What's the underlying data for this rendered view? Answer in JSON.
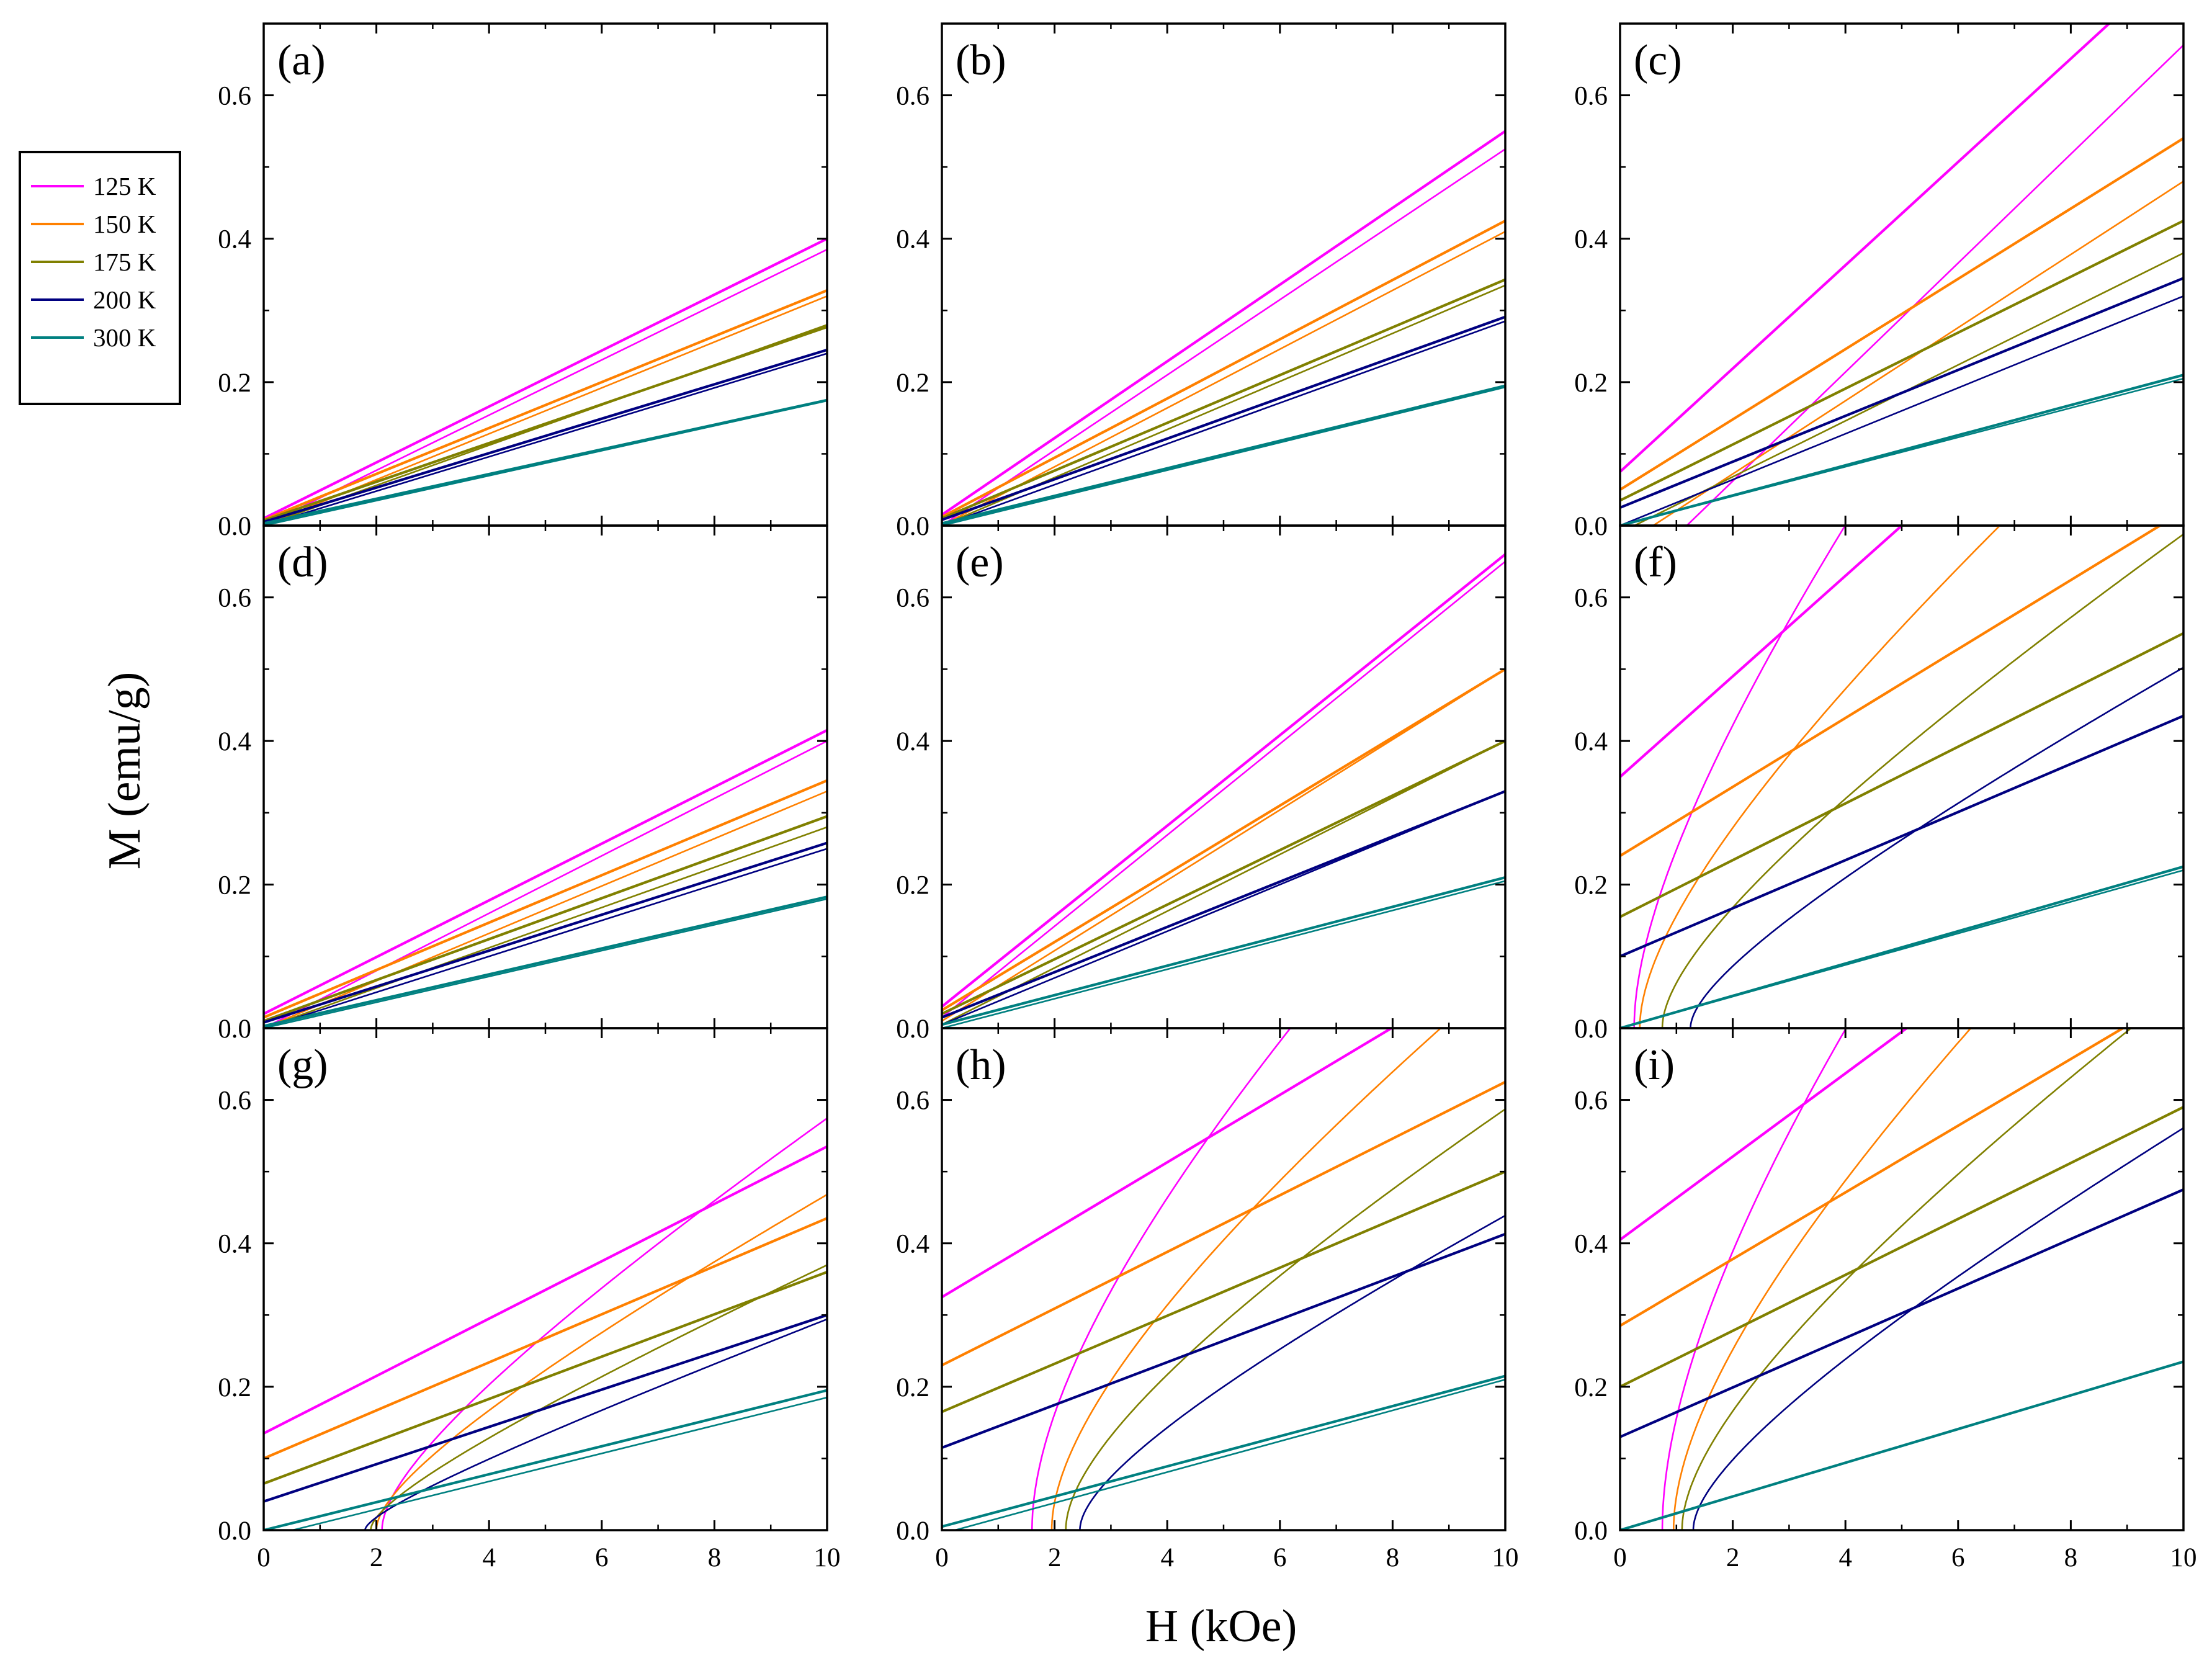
{
  "chart_data": {
    "type": "line",
    "xlabel": "H (kOe)",
    "ylabel": "M (emu/g)",
    "xlim": [
      0,
      10
    ],
    "ylim": [
      0,
      0.7
    ],
    "x_ticks": [
      0,
      2,
      4,
      6,
      8,
      10
    ],
    "x_tick_labels": [
      "0",
      "2",
      "4",
      "6",
      "8",
      "10"
    ],
    "y_ticks": [
      0.0,
      0.2,
      0.4,
      0.6
    ],
    "y_tick_labels": [
      "0.0",
      "0.2",
      "0.4",
      "0.6"
    ],
    "legend": [
      {
        "label": "125 K",
        "color": "#ff00ff"
      },
      {
        "label": "150 K",
        "color": "#ff8000"
      },
      {
        "label": "175 K",
        "color": "#808000"
      },
      {
        "label": "200 K",
        "color": "#000080"
      },
      {
        "label": "300 K",
        "color": "#008080"
      }
    ],
    "panels": [
      {
        "label": "(a)",
        "series": [
          {
            "name": "125 K",
            "upper": {
              "m0": 0.01,
              "slope": 0.039
            },
            "lower": {
              "type": "linear",
              "m0": 0.0,
              "slope": 0.0385
            }
          },
          {
            "name": "150 K",
            "upper": {
              "m0": 0.008,
              "slope": 0.032
            },
            "lower": {
              "type": "linear",
              "m0": 0.0,
              "slope": 0.032
            }
          },
          {
            "name": "175 K",
            "upper": {
              "m0": 0.007,
              "slope": 0.027
            },
            "lower": {
              "type": "linear",
              "m0": 0.0,
              "slope": 0.028
            }
          },
          {
            "name": "200 K",
            "upper": {
              "m0": 0.005,
              "slope": 0.024
            },
            "lower": {
              "type": "linear",
              "m0": 0.0,
              "slope": 0.024
            }
          },
          {
            "name": "300 K",
            "upper": {
              "m0": 0.003,
              "slope": 0.0172
            },
            "lower": {
              "type": "linear",
              "m0": 0.0,
              "slope": 0.0174
            }
          }
        ]
      },
      {
        "label": "(b)",
        "series": [
          {
            "name": "125 K",
            "upper": {
              "m0": 0.015,
              "slope": 0.0535
            },
            "lower": {
              "type": "linear",
              "m0": 0.0,
              "slope": 0.0525
            }
          },
          {
            "name": "150 K",
            "upper": {
              "m0": 0.012,
              "slope": 0.0413
            },
            "lower": {
              "type": "linear",
              "m0": 0.0,
              "slope": 0.041
            }
          },
          {
            "name": "175 K",
            "upper": {
              "m0": 0.01,
              "slope": 0.0333
            },
            "lower": {
              "type": "linear",
              "m0": 0.0,
              "slope": 0.0335
            }
          },
          {
            "name": "200 K",
            "upper": {
              "m0": 0.008,
              "slope": 0.0283
            },
            "lower": {
              "type": "linear",
              "m0": 0.0,
              "slope": 0.0285
            }
          },
          {
            "name": "300 K",
            "upper": {
              "m0": 0.003,
              "slope": 0.0192
            },
            "lower": {
              "type": "linear",
              "m0": 0.0,
              "slope": 0.0193
            }
          }
        ]
      },
      {
        "label": "(c)",
        "series": [
          {
            "name": "125 K",
            "upper": {
              "m0": 0.075,
              "slope": 0.072
            },
            "lower": {
              "type": "linear",
              "m0": -0.09,
              "slope": 0.076
            }
          },
          {
            "name": "150 K",
            "upper": {
              "m0": 0.05,
              "slope": 0.049
            },
            "lower": {
              "type": "linear",
              "m0": -0.03,
              "slope": 0.051
            }
          },
          {
            "name": "175 K",
            "upper": {
              "m0": 0.035,
              "slope": 0.039
            },
            "lower": {
              "type": "linear",
              "m0": -0.01,
              "slope": 0.039
            }
          },
          {
            "name": "200 K",
            "upper": {
              "m0": 0.025,
              "slope": 0.032
            },
            "lower": {
              "type": "linear",
              "m0": 0.0,
              "slope": 0.032
            }
          },
          {
            "name": "300 K",
            "upper": {
              "m0": 0.0,
              "slope": 0.021
            },
            "lower": {
              "type": "linear",
              "m0": 0.0,
              "slope": 0.0205
            }
          }
        ]
      },
      {
        "label": "(d)",
        "series": [
          {
            "name": "125 K",
            "upper": {
              "m0": 0.02,
              "slope": 0.0395
            },
            "lower": {
              "type": "linear",
              "m0": 0.0,
              "slope": 0.04
            }
          },
          {
            "name": "150 K",
            "upper": {
              "m0": 0.015,
              "slope": 0.033
            },
            "lower": {
              "type": "linear",
              "m0": 0.0,
              "slope": 0.033
            }
          },
          {
            "name": "175 K",
            "upper": {
              "m0": 0.01,
              "slope": 0.0285
            },
            "lower": {
              "type": "linear",
              "m0": 0.0,
              "slope": 0.028
            }
          },
          {
            "name": "200 K",
            "upper": {
              "m0": 0.008,
              "slope": 0.025
            },
            "lower": {
              "type": "linear",
              "m0": 0.0,
              "slope": 0.025
            }
          },
          {
            "name": "300 K",
            "upper": {
              "m0": 0.003,
              "slope": 0.018
            },
            "lower": {
              "type": "linear",
              "m0": 0.0,
              "slope": 0.018
            }
          }
        ]
      },
      {
        "label": "(e)",
        "series": [
          {
            "name": "125 K",
            "upper": {
              "m0": 0.03,
              "slope": 0.063
            },
            "lower": {
              "type": "linear",
              "m0": 0.015,
              "slope": 0.0635
            }
          },
          {
            "name": "150 K",
            "upper": {
              "m0": 0.025,
              "slope": 0.0475
            },
            "lower": {
              "type": "linear",
              "m0": 0.01,
              "slope": 0.049
            }
          },
          {
            "name": "175 K",
            "upper": {
              "m0": 0.02,
              "slope": 0.038
            },
            "lower": {
              "type": "linear",
              "m0": 0.005,
              "slope": 0.0395
            }
          },
          {
            "name": "200 K",
            "upper": {
              "m0": 0.015,
              "slope": 0.0315
            },
            "lower": {
              "type": "linear",
              "m0": 0.005,
              "slope": 0.0325
            }
          },
          {
            "name": "300 K",
            "upper": {
              "m0": 0.005,
              "slope": 0.0205
            },
            "lower": {
              "type": "linear",
              "m0": 0.0,
              "slope": 0.0205
            }
          }
        ]
      },
      {
        "label": "(f)",
        "series": [
          {
            "name": "125 K",
            "upper": {
              "m0": 0.35,
              "slope": 0.07
            },
            "lower": {
              "type": "sqrt",
              "h0": 0.25,
              "a": 0.32,
              "b": 0.07
            }
          },
          {
            "name": "150 K",
            "upper": {
              "m0": 0.24,
              "slope": 0.048
            },
            "lower": {
              "type": "sqrt",
              "h0": 0.35,
              "a": 0.22,
              "b": 0.048
            }
          },
          {
            "name": "175 K",
            "upper": {
              "m0": 0.155,
              "slope": 0.0395
            },
            "lower": {
              "type": "sqrt",
              "h0": 0.75,
              "a": 0.15,
              "b": 0.0395
            }
          },
          {
            "name": "200 K",
            "upper": {
              "m0": 0.1,
              "slope": 0.0335
            },
            "lower": {
              "type": "sqrt",
              "h0": 1.25,
              "a": 0.1,
              "b": 0.0335
            }
          },
          {
            "name": "300 K",
            "upper": {
              "m0": 0.0,
              "slope": 0.0225
            },
            "lower": {
              "type": "linear",
              "m0": 0.0,
              "slope": 0.022
            }
          }
        ]
      },
      {
        "label": "(g)",
        "series": [
          {
            "name": "125 K",
            "upper": {
              "m0": 0.135,
              "slope": 0.04
            },
            "lower": {
              "type": "sqrt",
              "h0": 2.1,
              "a": 0.13,
              "b": 0.04
            }
          },
          {
            "name": "150 K",
            "upper": {
              "m0": 0.1,
              "slope": 0.0335
            },
            "lower": {
              "type": "sqrt",
              "h0": 2.0,
              "a": 0.1,
              "b": 0.0335
            }
          },
          {
            "name": "175 K",
            "upper": {
              "m0": 0.065,
              "slope": 0.0295
            },
            "lower": {
              "type": "sqrt",
              "h0": 1.9,
              "a": 0.065,
              "b": 0.0295
            }
          },
          {
            "name": "200 K",
            "upper": {
              "m0": 0.04,
              "slope": 0.026
            },
            "lower": {
              "type": "sqrt",
              "h0": 1.8,
              "a": 0.04,
              "b": 0.026
            }
          },
          {
            "name": "300 K",
            "upper": {
              "m0": 0.0,
              "slope": 0.0195
            },
            "lower": {
              "type": "linear",
              "m0": -0.01,
              "slope": 0.0195
            }
          }
        ]
      },
      {
        "label": "(h)",
        "series": [
          {
            "name": "125 K",
            "upper": {
              "m0": 0.325,
              "slope": 0.047
            },
            "lower": {
              "type": "sqrt",
              "h0": 1.6,
              "a": 0.32,
              "b": 0.047
            }
          },
          {
            "name": "150 K",
            "upper": {
              "m0": 0.23,
              "slope": 0.0395
            },
            "lower": {
              "type": "sqrt",
              "h0": 1.95,
              "a": 0.23,
              "b": 0.0395
            }
          },
          {
            "name": "175 K",
            "upper": {
              "m0": 0.165,
              "slope": 0.0335
            },
            "lower": {
              "type": "sqrt",
              "h0": 2.2,
              "a": 0.165,
              "b": 0.0335
            }
          },
          {
            "name": "200 K",
            "upper": {
              "m0": 0.115,
              "slope": 0.0298
            },
            "lower": {
              "type": "sqrt",
              "h0": 2.45,
              "a": 0.11,
              "b": 0.0298
            }
          },
          {
            "name": "300 K",
            "upper": {
              "m0": 0.005,
              "slope": 0.021
            },
            "lower": {
              "type": "linear",
              "m0": -0.005,
              "slope": 0.0215
            }
          }
        ]
      },
      {
        "label": "(i)",
        "series": [
          {
            "name": "125 K",
            "upper": {
              "m0": 0.405,
              "slope": 0.058
            },
            "lower": {
              "type": "sqrt",
              "h0": 0.75,
              "a": 0.4,
              "b": 0.058
            }
          },
          {
            "name": "150 K",
            "upper": {
              "m0": 0.285,
              "slope": 0.0465
            },
            "lower": {
              "type": "sqrt",
              "h0": 0.95,
              "a": 0.28,
              "b": 0.0465
            }
          },
          {
            "name": "175 K",
            "upper": {
              "m0": 0.2,
              "slope": 0.039
            },
            "lower": {
              "type": "sqrt",
              "h0": 1.1,
              "a": 0.195,
              "b": 0.039
            }
          },
          {
            "name": "200 K",
            "upper": {
              "m0": 0.13,
              "slope": 0.0345
            },
            "lower": {
              "type": "sqrt",
              "h0": 1.3,
              "a": 0.125,
              "b": 0.0345
            }
          },
          {
            "name": "300 K",
            "upper": {
              "m0": 0.0,
              "slope": 0.0235
            },
            "lower": {
              "type": "linear",
              "m0": 0.0,
              "slope": 0.0235
            }
          }
        ]
      }
    ]
  }
}
